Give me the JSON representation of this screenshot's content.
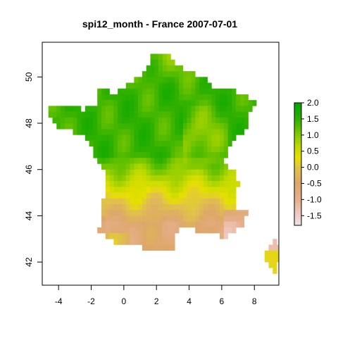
{
  "title": "spi12_month - France 2007-07-01",
  "chart_data": {
    "type": "heatmap",
    "title": "spi12_month - France 2007-07-01",
    "xlabel": "",
    "ylabel": "",
    "xlim": [
      -5,
      9.5
    ],
    "ylim": [
      41,
      51.5
    ],
    "x_ticks": [
      -4,
      -2,
      0,
      2,
      4,
      6,
      8
    ],
    "y_ticks": [
      42,
      44,
      46,
      48,
      50
    ],
    "colorbar": {
      "range": [
        -1.8,
        2.0
      ],
      "ticks": [
        2.0,
        1.5,
        1.0,
        0.5,
        0.0,
        -0.5,
        -1.0,
        -1.5
      ],
      "tick_labels": [
        "2.0",
        "1.5",
        "1.0",
        "0.5",
        "0.0",
        "-0.5",
        "-1.0",
        "-1.5"
      ],
      "palette": [
        "#e8e8e8",
        "#efc7bd",
        "#e7b08d",
        "#dda76a",
        "#e0c24a",
        "#e8e000",
        "#b8d800",
        "#74c500",
        "#2fb000",
        "#00a600"
      ]
    },
    "grid": false,
    "legend_position": "right"
  }
}
